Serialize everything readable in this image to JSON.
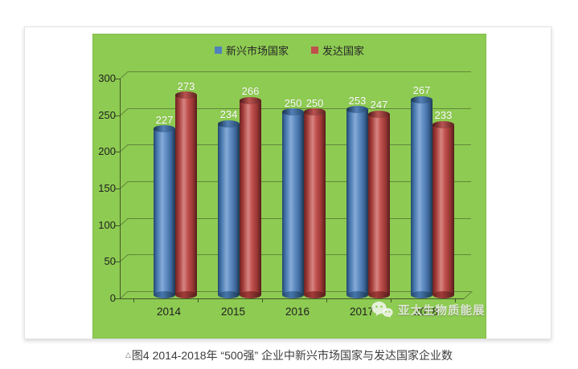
{
  "figure": {
    "caption_marker": "△",
    "caption": "图4 2014-2018年 “500强” 企业中新兴市场国家与发达国家企业数"
  },
  "watermark": {
    "icon": "wechat-icon",
    "text": "亚太生物质能展"
  },
  "chart_data": {
    "type": "bar",
    "subtype": "3d-cylinder",
    "title": "",
    "categories": [
      "2014",
      "2015",
      "2016",
      "2017",
      "2018"
    ],
    "series": [
      {
        "name": "新兴市场国家",
        "color": "#4f81bd",
        "values": [
          227,
          234,
          250,
          253,
          267
        ]
      },
      {
        "name": "发达国家",
        "color": "#c0504d",
        "values": [
          273,
          266,
          250,
          247,
          233
        ]
      }
    ],
    "xlabel": "",
    "ylabel": "",
    "ylim": [
      0,
      300
    ],
    "ytick_step": 50,
    "grid": true,
    "legend_position": "top-center",
    "plot_background": "#8ecb52",
    "data_labels": true,
    "data_label_color": "#ffffff",
    "gridline_color": "#4c6428",
    "axis_text_color": "#1f1f1f"
  }
}
